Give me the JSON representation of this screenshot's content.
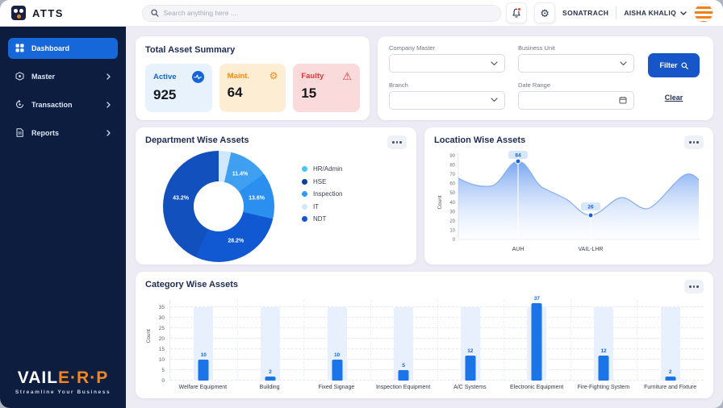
{
  "topbar": {
    "brand": "ATTS",
    "search_placeholder": "Search anything here ....",
    "company": "SONATRACH",
    "user": "AISHA KHALIQ"
  },
  "sidebar": {
    "items": [
      {
        "label": "Dashboard",
        "icon": "dashboard-icon",
        "active": true,
        "chevron": false
      },
      {
        "label": "Master",
        "icon": "master-icon",
        "active": false,
        "chevron": true
      },
      {
        "label": "Transaction",
        "icon": "transaction-icon",
        "active": false,
        "chevron": true
      },
      {
        "label": "Reports",
        "icon": "reports-icon",
        "active": false,
        "chevron": true
      }
    ],
    "logo_primary": "VAIL",
    "logo_secondary": "E·R·P",
    "tagline": "Streamline Your Business"
  },
  "summary": {
    "title": "Total Asset Summary",
    "tiles": [
      {
        "label": "Active",
        "value": "925",
        "color": "#1565d8"
      },
      {
        "label": "Maint.",
        "value": "64",
        "color": "#f08b1d"
      },
      {
        "label": "Faulty",
        "value": "15",
        "color": "#e23636"
      }
    ]
  },
  "filters": {
    "company_label": "Company Master",
    "business_label": "Business Unit",
    "branch_label": "Branch",
    "date_label": "Date Range",
    "filter_button": "Filter",
    "clear_label": "Clear"
  },
  "cards": {
    "department_title": "Department Wise Assets",
    "location_title": "Location Wise Assets",
    "category_title": "Category Wise Assets"
  },
  "chart_data": [
    {
      "type": "pie",
      "title": "Department Wise Assets",
      "donut": true,
      "legend_position": "right",
      "slices": [
        {
          "label": "IT",
          "value": 3.6,
          "display": "",
          "color": "#cfe8fb"
        },
        {
          "label": "HR/Admin",
          "value": 11.4,
          "display": "11.4%",
          "color": "#3fa0f2"
        },
        {
          "label": "Inspection",
          "value": 13.6,
          "display": "13.6%",
          "color": "#2a8fee"
        },
        {
          "label": "NDT",
          "value": 28.2,
          "display": "28.2%",
          "color": "#1159d2"
        },
        {
          "label": "HSE",
          "value": 43.2,
          "display": "43.2%",
          "color": "#1150bd"
        }
      ],
      "legend": [
        {
          "label": "HR/Admin",
          "color": "#4cc3f7"
        },
        {
          "label": "HSE",
          "color": "#0d3f9c"
        },
        {
          "label": "Inspection",
          "color": "#2f9bf2"
        },
        {
          "label": "IT",
          "color": "#cfe8fb"
        },
        {
          "label": "NDT",
          "color": "#1355d0"
        }
      ]
    },
    {
      "type": "area",
      "title": "Location Wise Assets",
      "ylabel": "Count",
      "ylim": [
        0,
        90
      ],
      "yticks": [
        0,
        10,
        20,
        30,
        40,
        50,
        60,
        70,
        80,
        90
      ],
      "x_categories": [
        "AUH",
        "VAIL-LHR"
      ],
      "marked_points": [
        {
          "category": "AUH",
          "value": 84,
          "badge": "84"
        },
        {
          "category": "VAIL-LHR",
          "value": 26,
          "badge": "26"
        }
      ],
      "curve_estimate": [
        66,
        57,
        84,
        55,
        40,
        26,
        45,
        33,
        60,
        70,
        64
      ]
    },
    {
      "type": "bar",
      "title": "Category Wise Assets",
      "ylabel": "Count",
      "yticks": [
        0,
        5,
        10,
        15,
        20,
        25,
        30,
        35
      ],
      "categories": [
        "Welfare Equipment",
        "Building",
        "Fixed Signage",
        "Inspection Equipment",
        "A/C Systems",
        "Electronic Equipment",
        "Fire-Fighting System",
        "Furniture and Fixture"
      ],
      "values": [
        10,
        2,
        10,
        5,
        12,
        37,
        12,
        2
      ],
      "bar_color": "#1b74e8",
      "track_color": "#e7f0fc",
      "track_max": 35
    }
  ]
}
